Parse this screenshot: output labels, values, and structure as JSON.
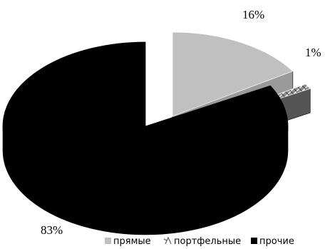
{
  "chart_data": {
    "type": "pie",
    "variant": "3d-exploded",
    "title": "",
    "categories": [
      "прямые",
      "портфельные",
      "прочие"
    ],
    "values": [
      16,
      1,
      83
    ],
    "labels": [
      "16%",
      "1%",
      "83%"
    ],
    "colors": [
      "#c0c0c0",
      "#7f7f7f",
      "#000000"
    ],
    "patterns": [
      "solid",
      "crosshatch",
      "solid"
    ],
    "legend_position": "bottom-right",
    "legend_markers": [
      "square",
      "hatch-glyph",
      "square"
    ]
  }
}
